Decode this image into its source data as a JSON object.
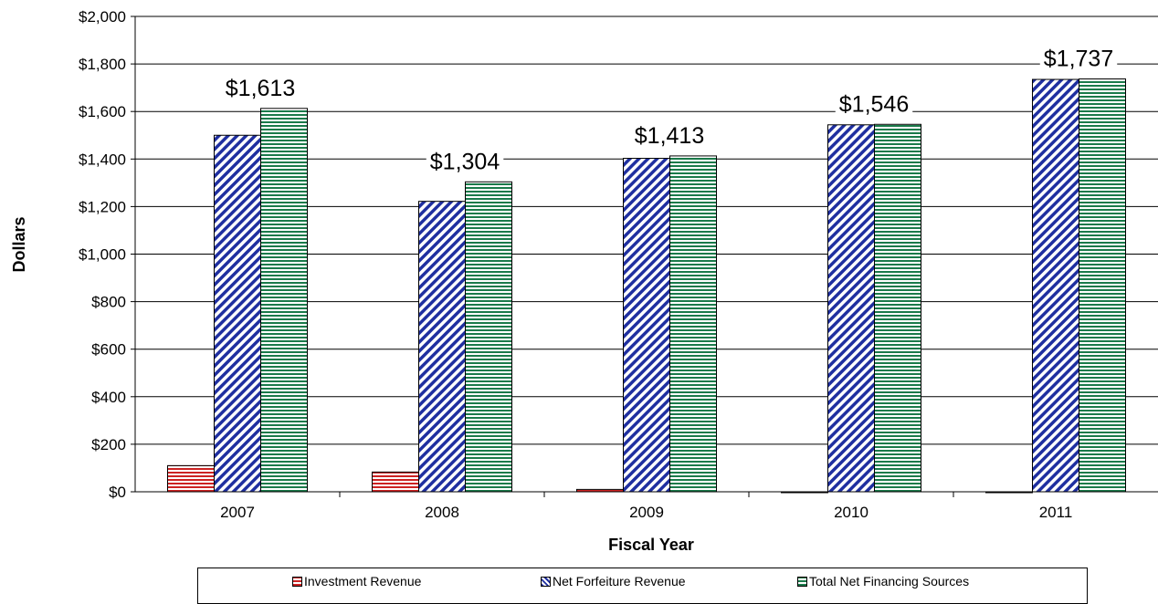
{
  "chart_data": {
    "type": "bar",
    "title": "",
    "xlabel": "Fiscal Year",
    "ylabel": "Dollars",
    "categories": [
      "2007",
      "2008",
      "2009",
      "2010",
      "2011"
    ],
    "ylim": [
      0,
      2000
    ],
    "yticks": [
      0,
      200,
      400,
      600,
      800,
      1000,
      1200,
      1400,
      1600,
      1800,
      2000
    ],
    "ytick_labels": [
      "$0",
      "$200",
      "$400",
      "$600",
      "$800",
      "$1,000",
      "$1,200",
      "$1,400",
      "$1,600",
      "$1,800",
      "$2,000"
    ],
    "grid": "horizontal",
    "legend_position": "bottom",
    "series": [
      {
        "name": "Investment Revenue",
        "values": [
          110,
          83,
          10,
          -2,
          -2
        ],
        "color": "#cc2222",
        "pattern": "horizontal-lines"
      },
      {
        "name": "Net Forfeiture Revenue",
        "values": [
          1500,
          1222,
          1403,
          1544,
          1735
        ],
        "color": "#1f2fa0",
        "pattern": "diagonal-lines"
      },
      {
        "name": "Total Net Financing Sources",
        "values": [
          1613,
          1304,
          1413,
          1546,
          1737
        ],
        "color": "#1a7a4a",
        "pattern": "horizontal-lines"
      }
    ],
    "data_labels": [
      "$1,613",
      "$1,304",
      "$1,413",
      "$1,546",
      "$1,737"
    ]
  }
}
